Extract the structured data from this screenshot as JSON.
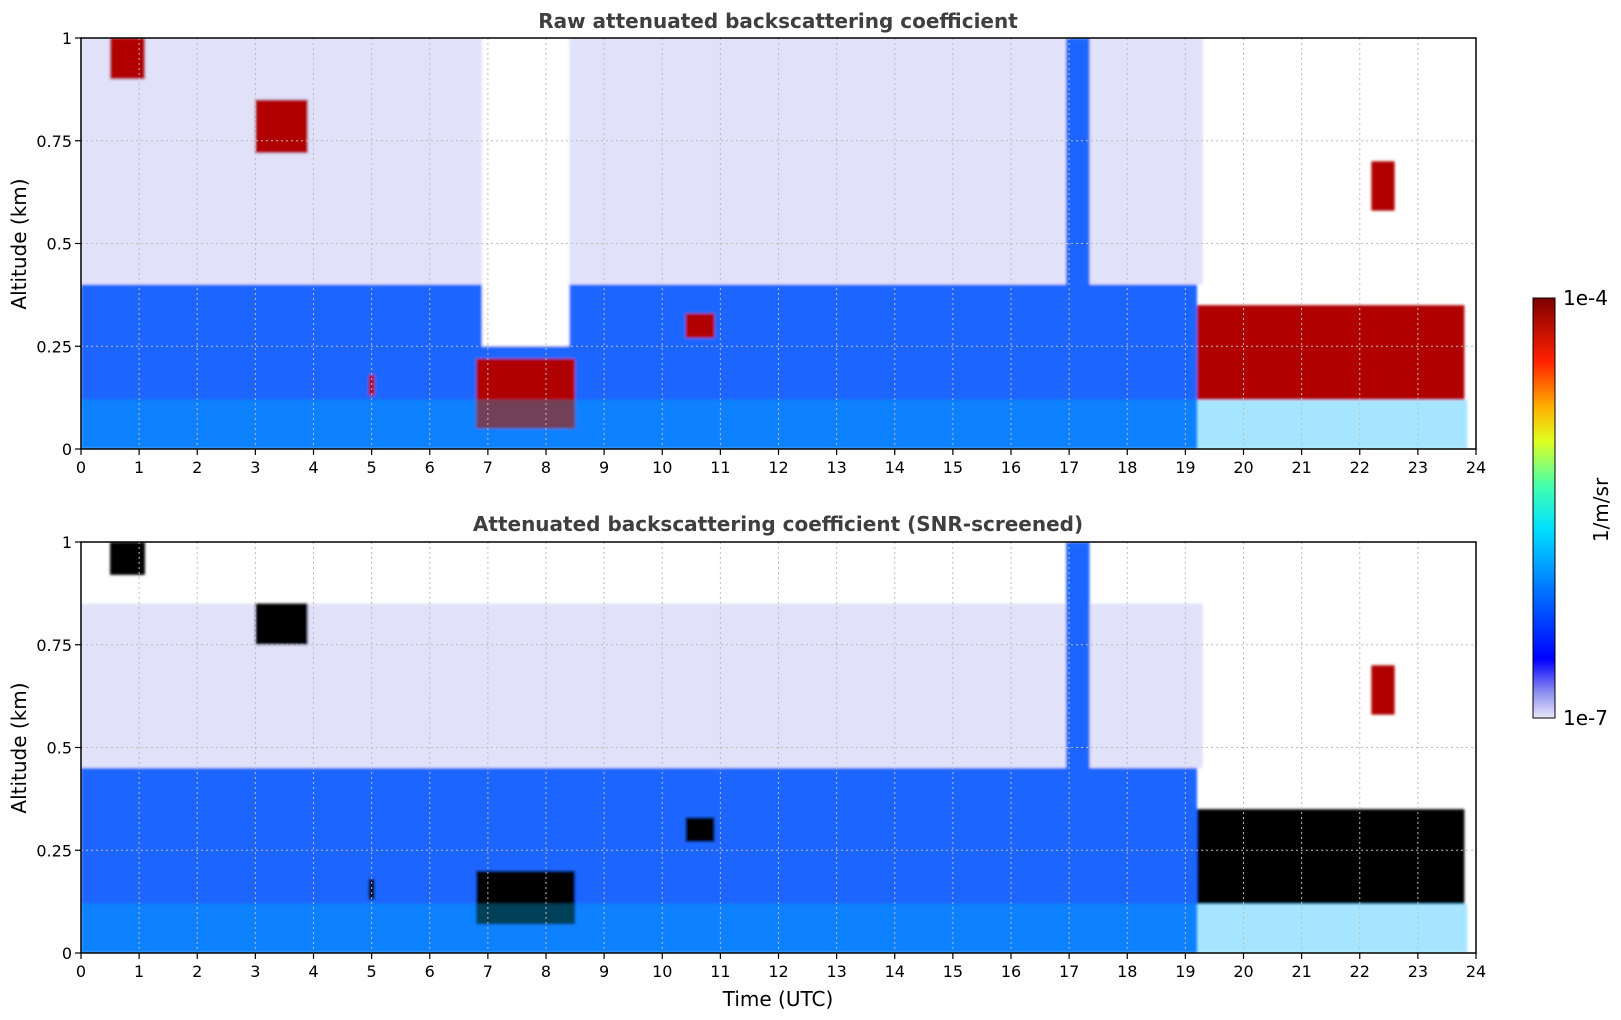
{
  "chart_data": [
    {
      "type": "heatmap",
      "title": "Raw attenuated backscattering coefficient",
      "xlabel": "",
      "ylabel": "Altitude (km)",
      "xlim": [
        0,
        24
      ],
      "ylim": [
        0,
        1
      ],
      "x_ticks": [
        "0",
        "1",
        "2",
        "3",
        "4",
        "5",
        "6",
        "7",
        "8",
        "9",
        "10",
        "11",
        "12",
        "13",
        "14",
        "15",
        "16",
        "17",
        "18",
        "19",
        "20",
        "21",
        "22",
        "23",
        "24"
      ],
      "y_ticks": [
        "0",
        "0.25",
        "0.5",
        "0.75",
        "1"
      ],
      "grid": true,
      "data_end_time": 23.85,
      "features": [
        {
          "name": "boundary layer aerosol",
          "t_start": 0,
          "t_end": 19.2,
          "alt_top": 0.4,
          "intensity": "medium"
        },
        {
          "name": "noise region",
          "t_start": 0,
          "t_end": 19.3,
          "alt_bottom": 0.4,
          "alt_top": 1.0,
          "intensity": "low"
        },
        {
          "name": "clear gap",
          "t_start": 6.9,
          "t_end": 8.4,
          "alt_bottom": 0.25,
          "alt_top": 1.0,
          "intensity": "none"
        },
        {
          "name": "cloud",
          "t_start": 0.5,
          "t_end": 1.1,
          "alt_bottom": 0.9,
          "alt_top": 1.0,
          "intensity": "high"
        },
        {
          "name": "cloud",
          "t_start": 3.0,
          "t_end": 3.9,
          "alt_bottom": 0.72,
          "alt_top": 0.85,
          "intensity": "high"
        },
        {
          "name": "cloud",
          "t_start": 4.95,
          "t_end": 5.05,
          "alt_bottom": 0.13,
          "alt_top": 0.18,
          "intensity": "high"
        },
        {
          "name": "fog layer",
          "t_start": 6.8,
          "t_end": 8.5,
          "alt_bottom": 0.05,
          "alt_top": 0.22,
          "intensity": "high"
        },
        {
          "name": "cloud",
          "t_start": 10.4,
          "t_end": 10.9,
          "alt_bottom": 0.27,
          "alt_top": 0.33,
          "intensity": "high"
        },
        {
          "name": "precipitation",
          "t_start": 16.95,
          "t_end": 17.35,
          "alt_bottom": 0.0,
          "alt_top": 1.0,
          "intensity": "medium"
        },
        {
          "name": "cloud layer",
          "t_start": 19.2,
          "t_end": 23.8,
          "alt_bottom": 0.12,
          "alt_top": 0.35,
          "intensity": "high"
        },
        {
          "name": "cloud",
          "t_start": 22.2,
          "t_end": 22.6,
          "alt_bottom": 0.58,
          "alt_top": 0.7,
          "intensity": "high"
        }
      ]
    },
    {
      "type": "heatmap",
      "title": "Attenuated backscattering coefficient (SNR-screened)",
      "xlabel": "Time (UTC)",
      "ylabel": "Altitude (km)",
      "xlim": [
        0,
        24
      ],
      "ylim": [
        0,
        1
      ],
      "x_ticks": [
        "0",
        "1",
        "2",
        "3",
        "4",
        "5",
        "6",
        "7",
        "8",
        "9",
        "10",
        "11",
        "12",
        "13",
        "14",
        "15",
        "16",
        "17",
        "18",
        "19",
        "20",
        "21",
        "22",
        "23",
        "24"
      ],
      "y_ticks": [
        "0",
        "0.25",
        "0.5",
        "0.75",
        "1"
      ],
      "grid": true,
      "data_end_time": 23.85,
      "features": [
        {
          "name": "boundary layer aerosol",
          "t_start": 0,
          "t_end": 19.2,
          "alt_top": 0.45,
          "intensity": "medium"
        },
        {
          "name": "screened upper region",
          "t_start": 0,
          "t_end": 19.3,
          "alt_bottom": 0.45,
          "alt_top": 0.85,
          "intensity": "low"
        },
        {
          "name": "cloud (saturated)",
          "t_start": 0.5,
          "t_end": 1.1,
          "alt_bottom": 0.92,
          "alt_top": 1.0,
          "intensity": "saturated"
        },
        {
          "name": "cloud (saturated)",
          "t_start": 3.0,
          "t_end": 3.9,
          "alt_bottom": 0.75,
          "alt_top": 0.85,
          "intensity": "saturated"
        },
        {
          "name": "cloud (saturated)",
          "t_start": 4.95,
          "t_end": 5.05,
          "alt_bottom": 0.13,
          "alt_top": 0.18,
          "intensity": "saturated"
        },
        {
          "name": "fog layer (saturated)",
          "t_start": 6.8,
          "t_end": 8.5,
          "alt_bottom": 0.07,
          "alt_top": 0.2,
          "intensity": "saturated"
        },
        {
          "name": "cloud (saturated)",
          "t_start": 10.4,
          "t_end": 10.9,
          "alt_bottom": 0.27,
          "alt_top": 0.33,
          "intensity": "saturated"
        },
        {
          "name": "precipitation",
          "t_start": 16.95,
          "t_end": 17.35,
          "alt_bottom": 0.0,
          "alt_top": 1.0,
          "intensity": "medium"
        },
        {
          "name": "cloud layer (saturated)",
          "t_start": 19.2,
          "t_end": 23.8,
          "alt_bottom": 0.12,
          "alt_top": 0.35,
          "intensity": "saturated"
        },
        {
          "name": "cloud",
          "t_start": 22.2,
          "t_end": 22.6,
          "alt_bottom": 0.58,
          "alt_top": 0.7,
          "intensity": "high"
        }
      ]
    }
  ],
  "colorbar": {
    "label": "1/m/sr",
    "min_label": "1e-7",
    "max_label": "1e-4",
    "scale": "log",
    "colormap": "jet",
    "under_color": "#e6e6f5",
    "saturation_color": "#000000"
  },
  "colors": {
    "title": "#3f3f3f",
    "grid": "#bdbdbd"
  }
}
